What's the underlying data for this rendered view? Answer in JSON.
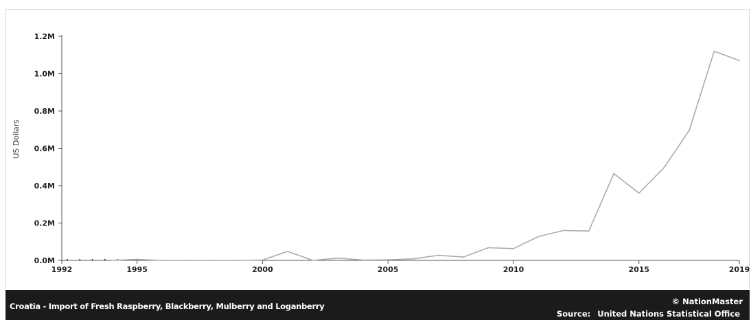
{
  "chart_data": {
    "type": "line",
    "title": "",
    "ylabel": "US Dollars",
    "xlabel": "",
    "xlim": [
      1992,
      2019
    ],
    "ylim": [
      0,
      1200000
    ],
    "x_ticks": [
      {
        "value": 1992,
        "label": "1992"
      },
      {
        "value": 1995,
        "label": "1995"
      },
      {
        "value": 2000,
        "label": "2000"
      },
      {
        "value": 2005,
        "label": "2005"
      },
      {
        "value": 2010,
        "label": "2010"
      },
      {
        "value": 2015,
        "label": "2015"
      },
      {
        "value": 2019,
        "label": "2019"
      }
    ],
    "y_ticks": [
      {
        "value": 0,
        "label": "0.0M"
      },
      {
        "value": 200000,
        "label": "0.2M"
      },
      {
        "value": 400000,
        "label": "0.4M"
      },
      {
        "value": 600000,
        "label": "0.6M"
      },
      {
        "value": 800000,
        "label": "0.8M"
      },
      {
        "value": 1000000,
        "label": "1.0M"
      },
      {
        "value": 1200000,
        "label": "1.2M"
      }
    ],
    "series": [
      {
        "line_color": "#ababab",
        "dotted_years": [
          1992,
          1993,
          1994
        ],
        "points": [
          {
            "x": 1994,
            "y": 0
          },
          {
            "x": 1995,
            "y": 5000
          },
          {
            "x": 1996,
            "y": 0
          },
          {
            "x": 1997,
            "y": 0
          },
          {
            "x": 1998,
            "y": 0
          },
          {
            "x": 1999,
            "y": 0
          },
          {
            "x": 2000,
            "y": 2000
          },
          {
            "x": 2001,
            "y": 48000
          },
          {
            "x": 2002,
            "y": 0
          },
          {
            "x": 2003,
            "y": 12000
          },
          {
            "x": 2004,
            "y": 2000
          },
          {
            "x": 2005,
            "y": 3000
          },
          {
            "x": 2006,
            "y": 8000
          },
          {
            "x": 2007,
            "y": 27000
          },
          {
            "x": 2008,
            "y": 18000
          },
          {
            "x": 2009,
            "y": 68000
          },
          {
            "x": 2010,
            "y": 63000
          },
          {
            "x": 2011,
            "y": 128000
          },
          {
            "x": 2012,
            "y": 160000
          },
          {
            "x": 2013,
            "y": 157000
          },
          {
            "x": 2014,
            "y": 465000
          },
          {
            "x": 2015,
            "y": 360000
          },
          {
            "x": 2016,
            "y": 497000
          },
          {
            "x": 2017,
            "y": 695000
          },
          {
            "x": 2018,
            "y": 1120000
          },
          {
            "x": 2019,
            "y": 1070000
          }
        ]
      }
    ],
    "grid": false,
    "legend": "none"
  },
  "footer": {
    "title": "Croatia - Import of Fresh Raspberry, Blackberry, Mulberry and Loganberry",
    "brand": "© NationMaster",
    "source_label": "Source:",
    "source_value": "United Nations Statistical Office"
  },
  "colors": {
    "footer_bg": "#1b1b1b",
    "axis": "#555555",
    "line": "#ababab"
  }
}
